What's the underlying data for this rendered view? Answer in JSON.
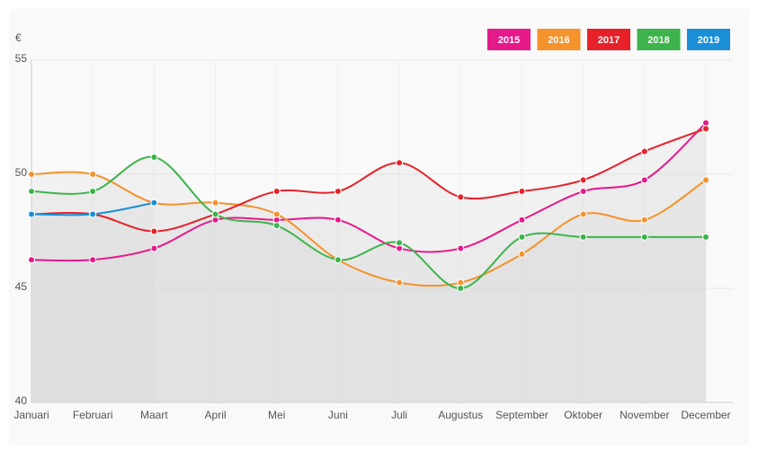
{
  "chart_data": {
    "type": "line",
    "y_label": "€",
    "categories": [
      "Januari",
      "Februari",
      "Maart",
      "April",
      "Mei",
      "Juni",
      "Juli",
      "Augustus",
      "September",
      "Oktober",
      "November",
      "December"
    ],
    "series": [
      {
        "name": "2015",
        "color": "#e6198a",
        "values": [
          46.25,
          46.25,
          46.75,
          48,
          48,
          48,
          46.75,
          46.75,
          48,
          49.25,
          49.75,
          52.25
        ]
      },
      {
        "name": "2016",
        "color": "#f4922c",
        "values": [
          50,
          50,
          48.75,
          48.75,
          48.25,
          46.25,
          45.25,
          45.25,
          46.5,
          48.25,
          48,
          49.75
        ]
      },
      {
        "name": "2017",
        "color": "#e62129",
        "values": [
          48.25,
          48.25,
          47.5,
          48.25,
          49.25,
          49.25,
          50.5,
          49,
          49.25,
          49.75,
          51,
          52
        ]
      },
      {
        "name": "2018",
        "color": "#3cb44b",
        "values": [
          49.25,
          49.25,
          50.75,
          48.25,
          47.75,
          46.25,
          47,
          45,
          47.25,
          47.25,
          47.25,
          47.25
        ]
      },
      {
        "name": "2019",
        "color": "#1a8fd6",
        "values": [
          48.25,
          48.25,
          48.75,
          null,
          null,
          null,
          null,
          null,
          null,
          null,
          null,
          null
        ]
      }
    ],
    "ylim": [
      40,
      55
    ],
    "yticks": [
      40,
      45,
      50,
      55
    ],
    "grid": true,
    "legend": "top-right"
  }
}
